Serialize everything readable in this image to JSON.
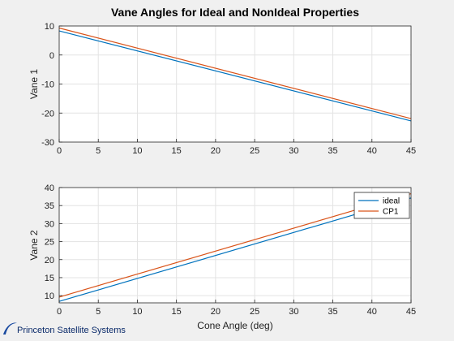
{
  "figure": {
    "title": "Vane Angles for Ideal and NonIdeal Properties",
    "logo_text": "Princeton Satellite Systems"
  },
  "chart_data": [
    {
      "type": "line",
      "title": "Vane Angles for Ideal and NonIdeal Properties",
      "xlabel": "",
      "ylabel": "Vane 1",
      "xlim": [
        0,
        45
      ],
      "ylim": [
        -30,
        10
      ],
      "xticks": [
        0,
        5,
        10,
        15,
        20,
        25,
        30,
        35,
        40,
        45
      ],
      "yticks": [
        -30,
        -20,
        -10,
        0,
        10
      ],
      "grid": true,
      "series": [
        {
          "name": "ideal",
          "color": "#0072BD",
          "x": [
            0,
            45
          ],
          "y": [
            8.3,
            -22.7
          ]
        },
        {
          "name": "CP1",
          "color": "#D95319",
          "x": [
            0,
            45
          ],
          "y": [
            9.3,
            -21.9
          ]
        }
      ]
    },
    {
      "type": "line",
      "xlabel": "Cone Angle (deg)",
      "ylabel": "Vane 2",
      "xlim": [
        0,
        45
      ],
      "ylim": [
        8,
        40
      ],
      "xticks": [
        0,
        5,
        10,
        15,
        20,
        25,
        30,
        35,
        40,
        45
      ],
      "yticks": [
        10,
        15,
        20,
        25,
        30,
        35,
        40
      ],
      "grid": true,
      "legend": {
        "entries": [
          "ideal",
          "CP1"
        ],
        "placement": "top-right"
      },
      "series": [
        {
          "name": "ideal",
          "color": "#0072BD",
          "x": [
            0,
            45
          ],
          "y": [
            8.4,
            37.1
          ]
        },
        {
          "name": "CP1",
          "color": "#D95319",
          "x": [
            0,
            45
          ],
          "y": [
            9.6,
            38.3
          ]
        }
      ]
    }
  ]
}
